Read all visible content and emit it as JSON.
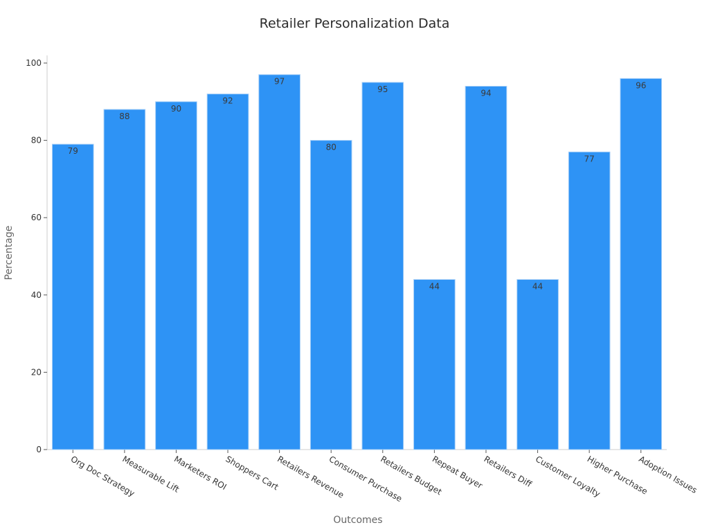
{
  "chart_data": {
    "type": "bar",
    "title": "Retailer Personalization Data",
    "xlabel": "Outcomes",
    "ylabel": "Percentage",
    "categories": [
      "Org Doc Strategy",
      "Measurable Lift",
      "Marketers ROI",
      "Shoppers Cart",
      "Retailers Revenue",
      "Consumer Purchase",
      "Retailers Budget",
      "Repeat Buyer",
      "Retailers Diff",
      "Customer Loyalty",
      "Higher Purchase",
      "Adoption Issues"
    ],
    "values": [
      79,
      88,
      90,
      92,
      97,
      80,
      95,
      44,
      94,
      44,
      77,
      96
    ],
    "ylim": [
      0,
      100
    ],
    "yticks": [
      0,
      20,
      40,
      60,
      80,
      100
    ],
    "grid": false,
    "bar_color": "#2e93f5",
    "bar_edge_color": "#a9d0f7"
  }
}
